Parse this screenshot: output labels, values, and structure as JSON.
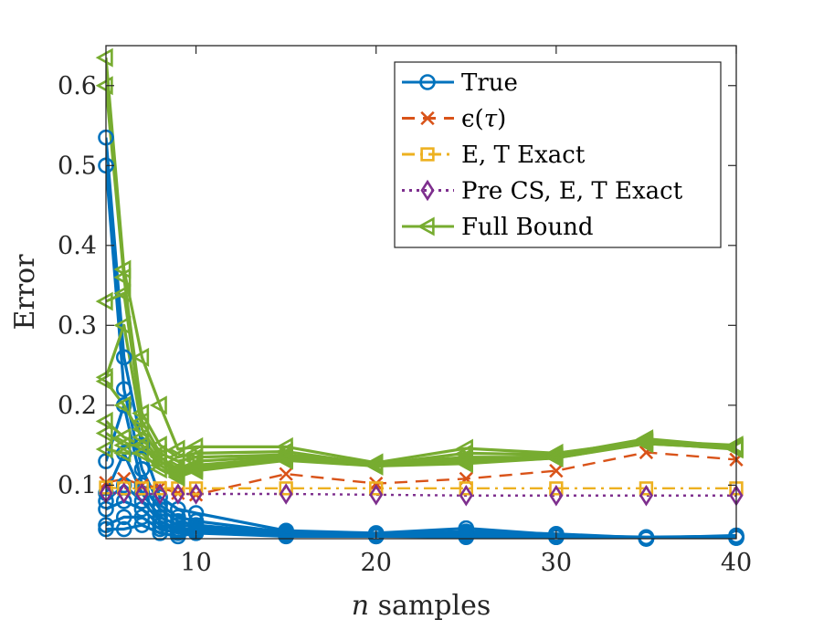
{
  "chart_data": {
    "type": "line",
    "xlabel_var": "n",
    "xlabel_rest": " samples",
    "ylabel": "Error",
    "xlim": [
      5,
      40
    ],
    "ylim": [
      0.033,
      0.65
    ],
    "xticks": [
      10,
      20,
      30,
      40
    ],
    "yticks": [
      0.1,
      0.2,
      0.3,
      0.4,
      0.5,
      0.6
    ],
    "ytick_labels": [
      "0.1",
      "0.2",
      "0.3",
      "0.4",
      "0.5",
      "0.6"
    ],
    "legend_position": "top-right",
    "grid": false,
    "x": [
      5,
      6,
      7,
      8,
      9,
      10,
      15,
      20,
      25,
      30,
      35,
      40
    ],
    "series": [
      {
        "name": "True",
        "color": "#0072BD",
        "line": "solid",
        "marker": "circle",
        "runs": [
          [
            0.535,
            0.26,
            0.15,
            0.085,
            0.07,
            0.065,
            0.043,
            0.04,
            0.046,
            0.038,
            0.034,
            0.036
          ],
          [
            0.5,
            0.22,
            0.12,
            0.075,
            0.06,
            0.055,
            0.041,
            0.039,
            0.042,
            0.039,
            0.034,
            0.037
          ],
          [
            0.13,
            0.2,
            0.1,
            0.07,
            0.055,
            0.05,
            0.04,
            0.038,
            0.04,
            0.037,
            0.035,
            0.036
          ],
          [
            0.09,
            0.14,
            0.09,
            0.06,
            0.05,
            0.048,
            0.039,
            0.038,
            0.038,
            0.037,
            0.034,
            0.035
          ],
          [
            0.08,
            0.1,
            0.08,
            0.055,
            0.045,
            0.045,
            0.038,
            0.037,
            0.037,
            0.036,
            0.034,
            0.035
          ],
          [
            0.07,
            0.08,
            0.07,
            0.05,
            0.043,
            0.043,
            0.037,
            0.037,
            0.036,
            0.036,
            0.033,
            0.035
          ],
          [
            0.05,
            0.06,
            0.06,
            0.045,
            0.04,
            0.042,
            0.037,
            0.036,
            0.036,
            0.035,
            0.033,
            0.034
          ],
          [
            0.045,
            0.045,
            0.05,
            0.04,
            0.036,
            0.04,
            0.036,
            0.036,
            0.035,
            0.035,
            0.033,
            0.034
          ]
        ]
      },
      {
        "name": "ε(τ)",
        "name_base": "ϵ(",
        "name_var": "τ",
        "name_end": ")",
        "color": "#D95319",
        "line": "dashed",
        "marker": "x",
        "values": [
          0.103,
          0.108,
          0.1,
          0.097,
          0.09,
          0.088,
          0.114,
          0.102,
          0.108,
          0.118,
          0.141,
          0.132
        ]
      },
      {
        "name": "E, T Exact",
        "color": "#EDB120",
        "line": "dashdot",
        "marker": "square",
        "values": [
          0.097,
          0.096,
          0.096,
          0.096,
          0.096,
          0.096,
          0.096,
          0.096,
          0.096,
          0.096,
          0.096,
          0.096
        ]
      },
      {
        "name": "Pre CS, E, T Exact",
        "color": "#7E2F8E",
        "line": "dotted",
        "marker": "diamond",
        "values": [
          0.09,
          0.09,
          0.089,
          0.089,
          0.089,
          0.089,
          0.089,
          0.088,
          0.087,
          0.087,
          0.087,
          0.087
        ]
      },
      {
        "name": "Full Bound",
        "color": "#77AC30",
        "line": "solid",
        "marker": "triangle-left",
        "runs": [
          [
            0.635,
            0.37,
            0.26,
            0.2,
            0.145,
            0.148,
            0.148,
            0.128,
            0.146,
            0.14,
            0.155,
            0.15
          ],
          [
            0.6,
            0.36,
            0.19,
            0.15,
            0.135,
            0.14,
            0.142,
            0.126,
            0.14,
            0.138,
            0.158,
            0.148
          ],
          [
            0.33,
            0.34,
            0.18,
            0.14,
            0.13,
            0.135,
            0.138,
            0.127,
            0.135,
            0.135,
            0.153,
            0.147
          ],
          [
            0.235,
            0.3,
            0.17,
            0.135,
            0.12,
            0.13,
            0.136,
            0.125,
            0.132,
            0.137,
            0.156,
            0.146
          ],
          [
            0.23,
            0.2,
            0.16,
            0.13,
            0.118,
            0.125,
            0.134,
            0.126,
            0.13,
            0.136,
            0.154,
            0.147
          ],
          [
            0.18,
            0.16,
            0.15,
            0.13,
            0.115,
            0.122,
            0.133,
            0.124,
            0.129,
            0.135,
            0.152,
            0.146
          ],
          [
            0.165,
            0.15,
            0.15,
            0.125,
            0.112,
            0.12,
            0.132,
            0.125,
            0.128,
            0.134,
            0.153,
            0.145
          ],
          [
            0.145,
            0.14,
            0.14,
            0.12,
            0.11,
            0.118,
            0.131,
            0.124,
            0.127,
            0.134,
            0.152,
            0.146
          ]
        ]
      }
    ]
  }
}
